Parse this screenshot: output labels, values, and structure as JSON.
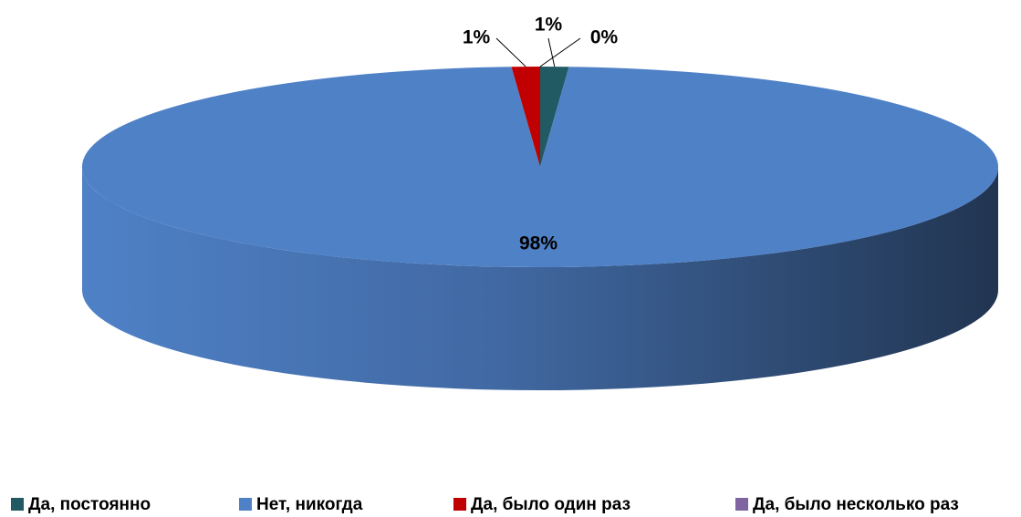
{
  "chart_data": {
    "type": "pie3d",
    "categories": [
      "Да, постоянно",
      "Нет, никогда",
      "Да, было один раз",
      "Да, было несколько раз"
    ],
    "values": [
      1,
      98,
      1,
      0
    ],
    "value_labels": [
      "1%",
      "98%",
      "1%",
      "0%"
    ],
    "colors": [
      "#215a63",
      "#4f81c7",
      "#c00000",
      "#8064a2"
    ],
    "legend": "bottom"
  }
}
